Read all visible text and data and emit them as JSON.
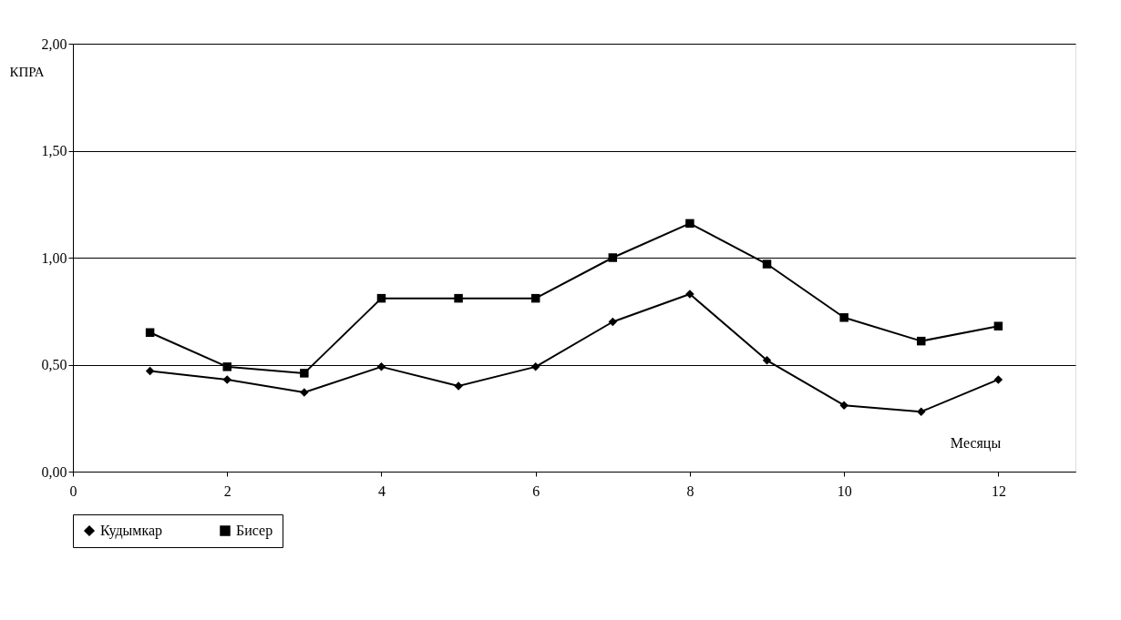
{
  "chart_data": {
    "type": "line",
    "xlabel": "Месяцы",
    "ylabel": "КПРА",
    "x": [
      1,
      2,
      3,
      4,
      5,
      6,
      7,
      8,
      9,
      10,
      11,
      12
    ],
    "series": [
      {
        "name": "Кудымкар",
        "color": "#000000",
        "marker": "diamond",
        "values": [
          0.47,
          0.43,
          0.37,
          0.49,
          0.4,
          0.49,
          0.7,
          0.83,
          0.52,
          0.31,
          0.28,
          0.43
        ]
      },
      {
        "name": "Бисер",
        "color": "#000000",
        "marker": "square",
        "values": [
          0.65,
          0.49,
          0.46,
          0.81,
          0.81,
          0.81,
          1.0,
          1.16,
          0.97,
          0.72,
          0.61,
          0.68
        ]
      }
    ],
    "xlim": [
      0,
      13
    ],
    "xticks": [
      0,
      2,
      4,
      6,
      8,
      10,
      12
    ],
    "ylim": [
      0,
      2
    ],
    "yticks": [
      {
        "value": 0,
        "label": "0,00"
      },
      {
        "value": 0.5,
        "label": "0,50"
      },
      {
        "value": 1,
        "label": "1,00"
      },
      {
        "value": 1.5,
        "label": "1,50"
      },
      {
        "value": 2,
        "label": "2,00"
      }
    ],
    "grid": "y",
    "legend": "bottom",
    "line_style": "solid"
  }
}
